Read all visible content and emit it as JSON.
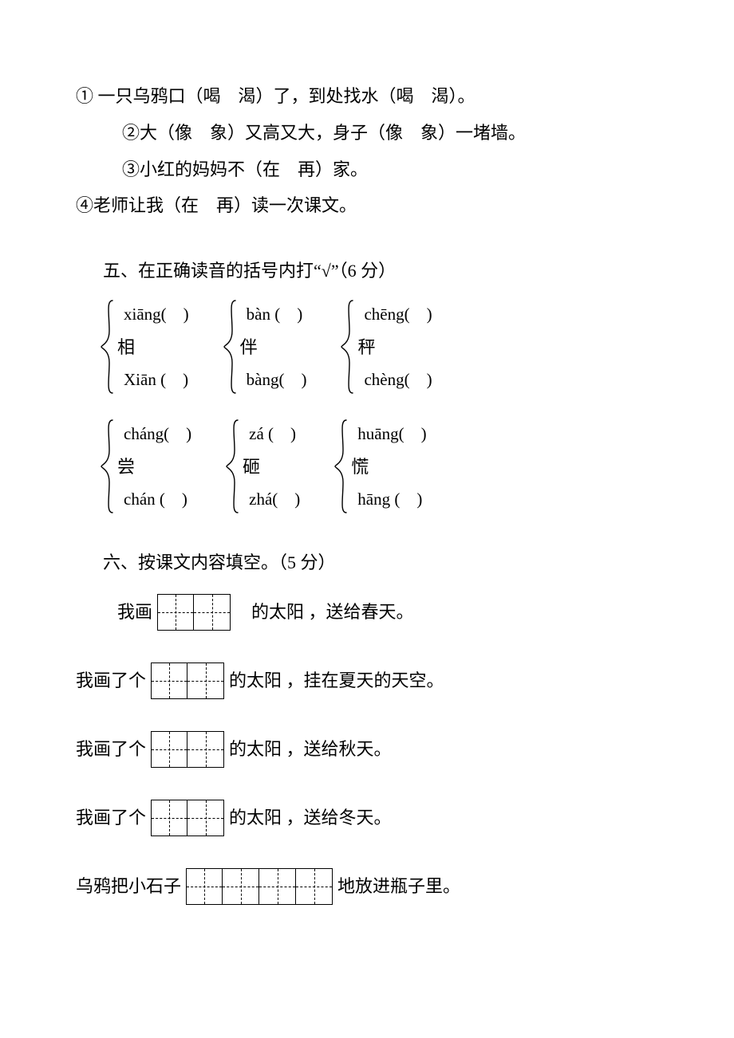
{
  "colors": {
    "text": "#000000",
    "background": "#ffffff",
    "border": "#000000"
  },
  "typography": {
    "font_family": "SimSun",
    "body_fontsize_pt": 16
  },
  "section4": {
    "lines": [
      "① 一只乌鸦口（喝　渴）了，到处找水（喝　渴）。",
      "②大（像　象）又高又大，身子（像　象）一堵墙。",
      "③小红的妈妈不（在　再）家。",
      "④老师让我（在　再）读一次课文。"
    ]
  },
  "section5": {
    "title": "五、在正确读音的括号内打“√”（6 分）",
    "rows": [
      [
        {
          "char": "相",
          "top": "xiāng(　)",
          "bot": "Xiān (　)"
        },
        {
          "char": "伴",
          "top": "bàn (　)",
          "bot": "bàng(　)"
        },
        {
          "char": "秤",
          "top": "chēng(　)",
          "bot": "chèng(　)"
        }
      ],
      [
        {
          "char": "尝",
          "top": "cháng(　)",
          "bot": "chán (　)"
        },
        {
          "char": "砸",
          "top": "zá (　)",
          "bot": "zhá(　)"
        },
        {
          "char": "慌",
          "top": "huāng(　)",
          "bot": "hāng (　)"
        }
      ]
    ]
  },
  "section6": {
    "title": "六、按课文内容填空。（5 分）",
    "lines": [
      {
        "pre": "我画",
        "boxes": 2,
        "gap_after": true,
        "post": "的太阳 ，送给春天。",
        "first": true
      },
      {
        "pre": "我画了个",
        "boxes": 2,
        "gap_after": false,
        "post": "的太阳 ，挂在夏天的天空。"
      },
      {
        "pre": "我画了个",
        "boxes": 2,
        "gap_after": false,
        "post": "的太阳 ，送给秋天。"
      },
      {
        "pre": "我画了个",
        "boxes": 2,
        "gap_after": false,
        "post": "的太阳 ，送给冬天。"
      },
      {
        "pre": "乌鸦把小石子",
        "boxes": 4,
        "gap_after": false,
        "post": "地放进瓶子里。"
      }
    ]
  }
}
